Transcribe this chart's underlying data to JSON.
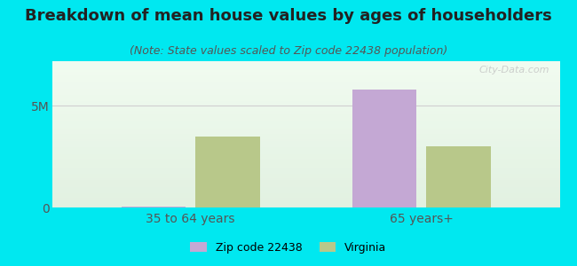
{
  "title": "Breakdown of mean house values by ages of householders",
  "subtitle": "(Note: State values scaled to Zip code 22438 population)",
  "categories": [
    "35 to 64 years",
    "65 years+"
  ],
  "series": {
    "Zip code 22438": [
      50000,
      5800000
    ],
    "Virginia": [
      3500000,
      3000000
    ]
  },
  "colors": {
    "Zip code 22438": "#c4a8d4",
    "Virginia": "#b8c88a"
  },
  "yticks": [
    0,
    5000000
  ],
  "ytick_labels": [
    "0",
    "5M"
  ],
  "ylim": [
    0,
    7200000
  ],
  "background_color": "#00e8f0",
  "plot_bg": "#eaf5e8",
  "bar_width": 0.28,
  "title_fontsize": 13,
  "subtitle_fontsize": 9,
  "tick_fontsize": 10,
  "watermark": "City-Data.com"
}
